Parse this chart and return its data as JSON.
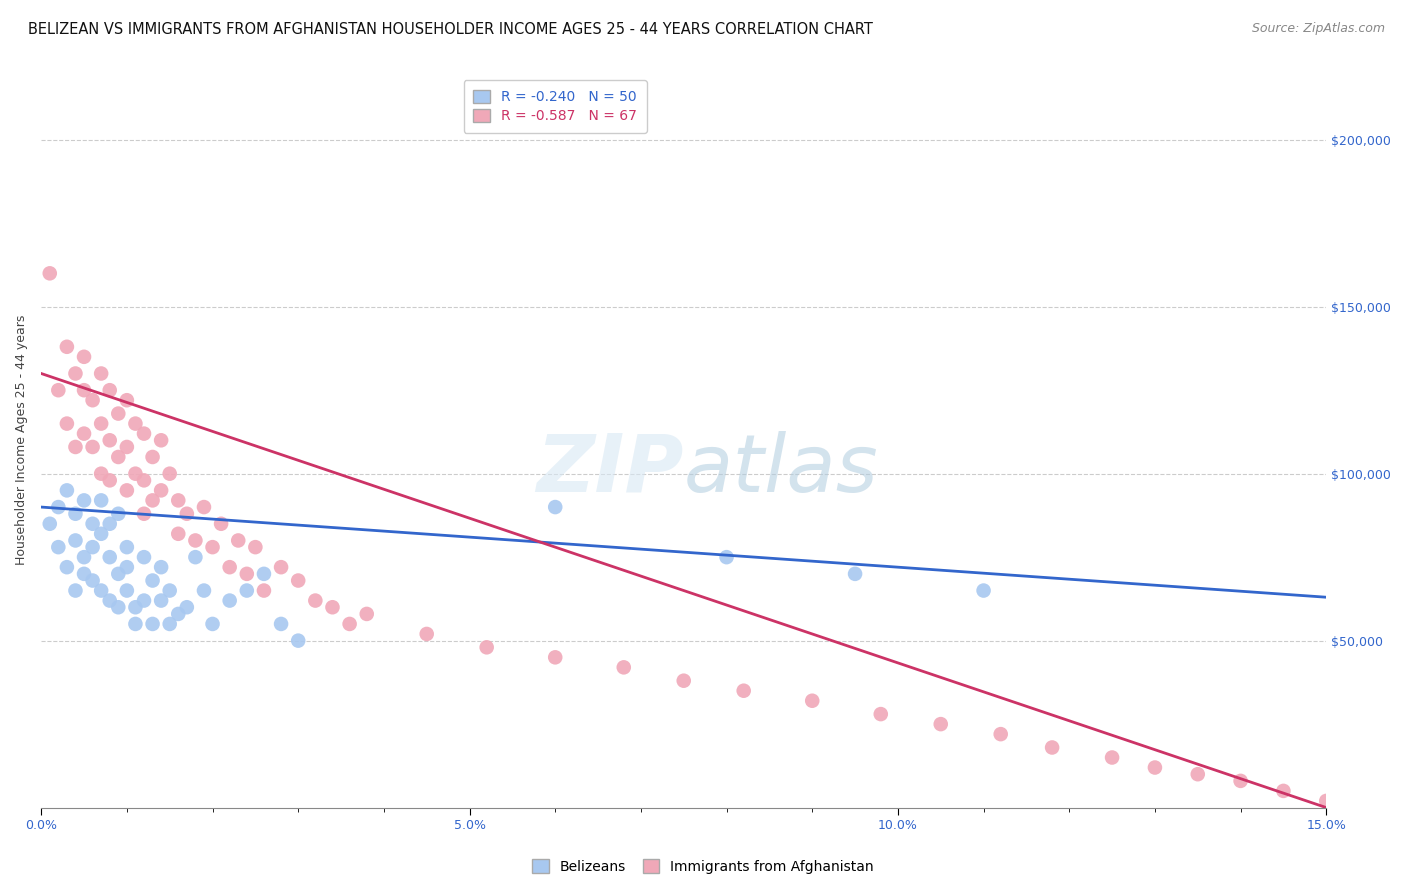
{
  "title": "BELIZEAN VS IMMIGRANTS FROM AFGHANISTAN HOUSEHOLDER INCOME AGES 25 - 44 YEARS CORRELATION CHART",
  "source": "Source: ZipAtlas.com",
  "ylabel": "Householder Income Ages 25 - 44 years",
  "xlim": [
    0.0,
    0.15
  ],
  "ylim": [
    0,
    220000
  ],
  "xticks": [
    0.0,
    0.05,
    0.1,
    0.15
  ],
  "xticklabels": [
    "0.0%",
    "5.0%",
    "10.0%",
    "15.0%"
  ],
  "ytick_positions": [
    50000,
    100000,
    150000,
    200000
  ],
  "ytick_labels": [
    "$50,000",
    "$100,000",
    "$150,000",
    "$200,000"
  ],
  "legend_labels": [
    "Belizeans",
    "Immigrants from Afghanistan"
  ],
  "blue_R": -0.24,
  "blue_N": 50,
  "pink_R": -0.587,
  "pink_N": 67,
  "blue_color": "#a8c8f0",
  "pink_color": "#f0a8b8",
  "blue_line_color": "#3366cc",
  "pink_line_color": "#cc3366",
  "background_color": "#ffffff",
  "grid_color": "#cccccc",
  "blue_line_y0": 90000,
  "blue_line_y1": 63000,
  "pink_line_y0": 130000,
  "pink_line_y1": 0,
  "blue_x": [
    0.001,
    0.002,
    0.002,
    0.003,
    0.003,
    0.004,
    0.004,
    0.004,
    0.005,
    0.005,
    0.005,
    0.006,
    0.006,
    0.006,
    0.007,
    0.007,
    0.007,
    0.008,
    0.008,
    0.008,
    0.009,
    0.009,
    0.009,
    0.01,
    0.01,
    0.01,
    0.011,
    0.011,
    0.012,
    0.012,
    0.013,
    0.013,
    0.014,
    0.014,
    0.015,
    0.015,
    0.016,
    0.017,
    0.018,
    0.019,
    0.02,
    0.022,
    0.024,
    0.026,
    0.028,
    0.03,
    0.06,
    0.08,
    0.095,
    0.11
  ],
  "blue_y": [
    85000,
    90000,
    78000,
    95000,
    72000,
    88000,
    80000,
    65000,
    92000,
    75000,
    70000,
    85000,
    68000,
    78000,
    65000,
    82000,
    92000,
    75000,
    62000,
    85000,
    70000,
    60000,
    88000,
    78000,
    65000,
    72000,
    60000,
    55000,
    75000,
    62000,
    68000,
    55000,
    62000,
    72000,
    55000,
    65000,
    58000,
    60000,
    75000,
    65000,
    55000,
    62000,
    65000,
    70000,
    55000,
    50000,
    90000,
    75000,
    70000,
    65000
  ],
  "pink_x": [
    0.001,
    0.002,
    0.003,
    0.003,
    0.004,
    0.004,
    0.005,
    0.005,
    0.005,
    0.006,
    0.006,
    0.007,
    0.007,
    0.007,
    0.008,
    0.008,
    0.008,
    0.009,
    0.009,
    0.01,
    0.01,
    0.01,
    0.011,
    0.011,
    0.012,
    0.012,
    0.012,
    0.013,
    0.013,
    0.014,
    0.014,
    0.015,
    0.016,
    0.016,
    0.017,
    0.018,
    0.019,
    0.02,
    0.021,
    0.022,
    0.023,
    0.024,
    0.025,
    0.026,
    0.028,
    0.03,
    0.032,
    0.034,
    0.036,
    0.038,
    0.045,
    0.052,
    0.06,
    0.068,
    0.075,
    0.082,
    0.09,
    0.098,
    0.105,
    0.112,
    0.118,
    0.125,
    0.13,
    0.135,
    0.14,
    0.145,
    0.15
  ],
  "pink_y": [
    160000,
    125000,
    138000,
    115000,
    130000,
    108000,
    125000,
    112000,
    135000,
    122000,
    108000,
    130000,
    115000,
    100000,
    125000,
    110000,
    98000,
    118000,
    105000,
    122000,
    108000,
    95000,
    115000,
    100000,
    112000,
    98000,
    88000,
    105000,
    92000,
    110000,
    95000,
    100000,
    92000,
    82000,
    88000,
    80000,
    90000,
    78000,
    85000,
    72000,
    80000,
    70000,
    78000,
    65000,
    72000,
    68000,
    62000,
    60000,
    55000,
    58000,
    52000,
    48000,
    45000,
    42000,
    38000,
    35000,
    32000,
    28000,
    25000,
    22000,
    18000,
    15000,
    12000,
    10000,
    8000,
    5000,
    2000
  ],
  "title_fontsize": 10.5,
  "axis_label_fontsize": 9,
  "tick_fontsize": 9,
  "legend_fontsize": 10,
  "source_fontsize": 9
}
